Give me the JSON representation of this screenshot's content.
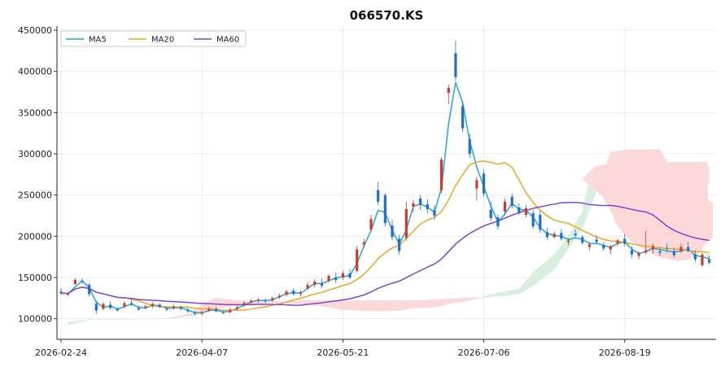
{
  "chart_data": {
    "type": "candlestick",
    "title": "066570.KS",
    "ylim": [
      75000,
      455000
    ],
    "yticks": [
      100000,
      150000,
      200000,
      250000,
      300000,
      350000,
      400000,
      450000
    ],
    "ytick_labels": [
      "100000",
      "150000",
      "200000",
      "250000",
      "300000",
      "350000",
      "400000",
      "450000"
    ],
    "xtick_labels": [
      "2026-02-24",
      "2026-04-07",
      "2026-05-21",
      "2026-07-06",
      "2026-08-19"
    ],
    "legend": {
      "position": "top-left",
      "entries": [
        {
          "name": "MA5",
          "color": "#1fa9d6"
        },
        {
          "name": "MA20",
          "color": "#f2a424"
        },
        {
          "name": "MA60",
          "color": "#7b46d4"
        }
      ]
    },
    "grid": true,
    "up_color": "#d0392b",
    "down_color": "#1f6fcc",
    "cloud_bull_color": "#d8efe0",
    "cloud_bear_color": "#fbd9d9",
    "n_days": 185,
    "candles": [
      [
        0,
        133000,
        137000,
        129000,
        131000
      ],
      [
        2,
        129000,
        133000,
        127000,
        130000
      ],
      [
        4,
        142000,
        149000,
        141000,
        147000
      ],
      [
        6,
        146000,
        149000,
        142000,
        145000
      ],
      [
        8,
        141000,
        143000,
        127000,
        130000
      ],
      [
        10,
        118000,
        122000,
        106000,
        110000
      ],
      [
        12,
        112000,
        120000,
        110000,
        118000
      ],
      [
        14,
        117000,
        121000,
        111000,
        113000
      ],
      [
        16,
        112000,
        114000,
        109000,
        110000
      ],
      [
        18,
        115000,
        121000,
        113000,
        119000
      ],
      [
        20,
        119000,
        123000,
        115000,
        117000
      ],
      [
        22,
        113000,
        116000,
        110000,
        111000
      ],
      [
        24,
        113000,
        117000,
        111000,
        115000
      ],
      [
        26,
        115000,
        120000,
        113000,
        118000
      ],
      [
        28,
        117000,
        119000,
        113000,
        114000
      ],
      [
        30,
        112000,
        115000,
        109000,
        111000
      ],
      [
        32,
        113000,
        117000,
        111000,
        115000
      ],
      [
        34,
        114000,
        116000,
        110000,
        112000
      ],
      [
        36,
        111000,
        114000,
        107000,
        109000
      ],
      [
        38,
        107000,
        110000,
        104000,
        106000
      ],
      [
        40,
        106000,
        110000,
        104000,
        108000
      ],
      [
        42,
        110000,
        115000,
        108000,
        112000
      ],
      [
        44,
        112000,
        114000,
        108000,
        109000
      ],
      [
        46,
        108000,
        111000,
        105000,
        107000
      ],
      [
        48,
        108000,
        113000,
        106000,
        111000
      ],
      [
        50,
        112000,
        116000,
        110000,
        114000
      ],
      [
        52,
        116000,
        121000,
        114000,
        119000
      ],
      [
        54,
        120000,
        124000,
        117000,
        122000
      ],
      [
        56,
        122000,
        125000,
        119000,
        123000
      ],
      [
        58,
        122000,
        125000,
        119000,
        121000
      ],
      [
        60,
        122000,
        127000,
        120000,
        125000
      ],
      [
        62,
        126000,
        130000,
        124000,
        128000
      ],
      [
        64,
        129000,
        135000,
        127000,
        133000
      ],
      [
        66,
        134000,
        137000,
        128000,
        130000
      ],
      [
        68,
        130000,
        134000,
        127000,
        132000
      ],
      [
        70,
        137000,
        144000,
        135000,
        141000
      ],
      [
        72,
        141000,
        148000,
        138000,
        145000
      ],
      [
        74,
        143000,
        149000,
        137000,
        140000
      ],
      [
        76,
        146000,
        154000,
        144000,
        152000
      ],
      [
        78,
        150000,
        156000,
        143000,
        147000
      ],
      [
        80,
        150000,
        158000,
        147000,
        155000
      ],
      [
        82,
        155000,
        160000,
        148000,
        150000
      ],
      [
        84,
        158000,
        188000,
        157000,
        184000
      ],
      [
        86,
        190000,
        197000,
        186000,
        193000
      ],
      [
        88,
        208000,
        226000,
        205000,
        221000
      ],
      [
        90,
        256000,
        266000,
        238000,
        242000
      ],
      [
        92,
        250000,
        252000,
        212000,
        216000
      ],
      [
        94,
        213000,
        220000,
        195000,
        199000
      ],
      [
        96,
        197000,
        202000,
        178000,
        182000
      ],
      [
        98,
        198000,
        242000,
        195000,
        233000
      ],
      [
        100,
        236000,
        244000,
        229000,
        240000
      ],
      [
        102,
        246000,
        250000,
        232000,
        238000
      ],
      [
        104,
        239000,
        245000,
        228000,
        233000
      ],
      [
        106,
        232000,
        238000,
        220000,
        225000
      ],
      [
        108,
        256000,
        296000,
        252000,
        293000
      ],
      [
        110,
        374000,
        384000,
        360000,
        380000
      ],
      [
        112,
        422000,
        437000,
        388000,
        393000
      ],
      [
        114,
        358000,
        364000,
        326000,
        331000
      ],
      [
        116,
        318000,
        324000,
        295000,
        300000
      ],
      [
        118,
        258000,
        272000,
        243000,
        268000
      ],
      [
        120,
        276000,
        281000,
        248000,
        252000
      ],
      [
        122,
        232000,
        242000,
        218000,
        222000
      ],
      [
        124,
        223000,
        226000,
        208000,
        212000
      ],
      [
        126,
        230000,
        246000,
        226000,
        242000
      ],
      [
        128,
        248000,
        252000,
        234000,
        237000
      ],
      [
        130,
        235000,
        240000,
        226000,
        229000
      ],
      [
        132,
        226000,
        238000,
        223000,
        234000
      ],
      [
        134,
        228000,
        232000,
        209000,
        212000
      ],
      [
        136,
        226000,
        231000,
        204000,
        208000
      ],
      [
        138,
        205000,
        210000,
        196000,
        199000
      ],
      [
        140,
        199000,
        206000,
        197000,
        203000
      ],
      [
        142,
        204000,
        209000,
        195000,
        197000
      ],
      [
        144,
        193000,
        198000,
        189000,
        195000
      ],
      [
        146,
        203000,
        208000,
        199000,
        201000
      ],
      [
        148,
        199000,
        202000,
        190000,
        192000
      ],
      [
        150,
        187000,
        193000,
        183000,
        190000
      ],
      [
        152,
        196000,
        201000,
        190000,
        193000
      ],
      [
        154,
        189000,
        193000,
        182000,
        185000
      ],
      [
        156,
        184000,
        190000,
        178000,
        188000
      ],
      [
        158,
        191000,
        197000,
        188000,
        195000
      ],
      [
        160,
        197000,
        203000,
        188000,
        191000
      ],
      [
        162,
        183000,
        188000,
        174000,
        178000
      ],
      [
        164,
        176000,
        182000,
        172000,
        180000
      ],
      [
        166,
        180000,
        207000,
        178000,
        183000
      ],
      [
        168,
        184000,
        191000,
        179000,
        188000
      ],
      [
        170,
        182000,
        187000,
        176000,
        180000
      ],
      [
        172,
        186000,
        191000,
        180000,
        185000
      ],
      [
        174,
        182000,
        186000,
        174000,
        177000
      ],
      [
        176,
        182000,
        191000,
        180000,
        187000
      ],
      [
        178,
        187000,
        193000,
        181000,
        182000
      ],
      [
        180,
        178000,
        183000,
        169000,
        172000
      ],
      [
        182,
        165000,
        180000,
        163000,
        178000
      ],
      [
        184,
        172000,
        177000,
        166000,
        168000
      ]
    ]
  }
}
